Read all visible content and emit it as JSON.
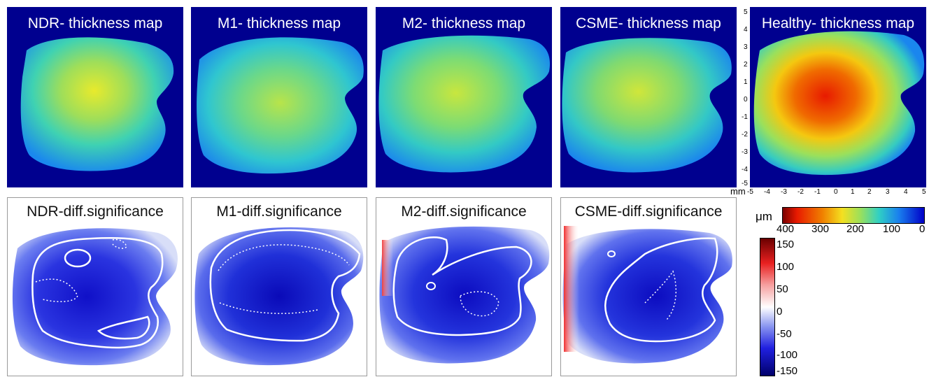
{
  "thickness_maps": [
    {
      "title": "NDR- thickness map"
    },
    {
      "title": "M1- thickness map"
    },
    {
      "title": "M2- thickness map"
    },
    {
      "title": "CSME- thickness map"
    },
    {
      "title": "Healthy- thickness map"
    }
  ],
  "diff_maps": [
    {
      "title": "NDR-diff.significance"
    },
    {
      "title": "M1-diff.significance"
    },
    {
      "title": "M2-diff.significance"
    },
    {
      "title": "CSME-diff.significance"
    }
  ],
  "axis": {
    "unit": "mm",
    "x_ticks": [
      "-5",
      "-4",
      "-3",
      "-2",
      "-1",
      "0",
      "1",
      "2",
      "3",
      "4",
      "5"
    ],
    "y_ticks": [
      "5",
      "4",
      "3",
      "2",
      "1",
      "0",
      "-1",
      "-2",
      "-3",
      "-4",
      "-5"
    ]
  },
  "thickness_colorbar": {
    "unit": "μm",
    "labels": [
      "400",
      "300",
      "200",
      "100",
      "0"
    ],
    "range": [
      0,
      400
    ]
  },
  "diff_colorbar": {
    "labels": [
      "150",
      "100",
      "50",
      "0",
      "-50",
      "-100",
      "-150"
    ],
    "range": [
      -150,
      150
    ]
  },
  "colors": {
    "background_dark_blue": "#00008f",
    "healthy_peak": "#e82000",
    "diseased_mid": "#8ad870"
  }
}
